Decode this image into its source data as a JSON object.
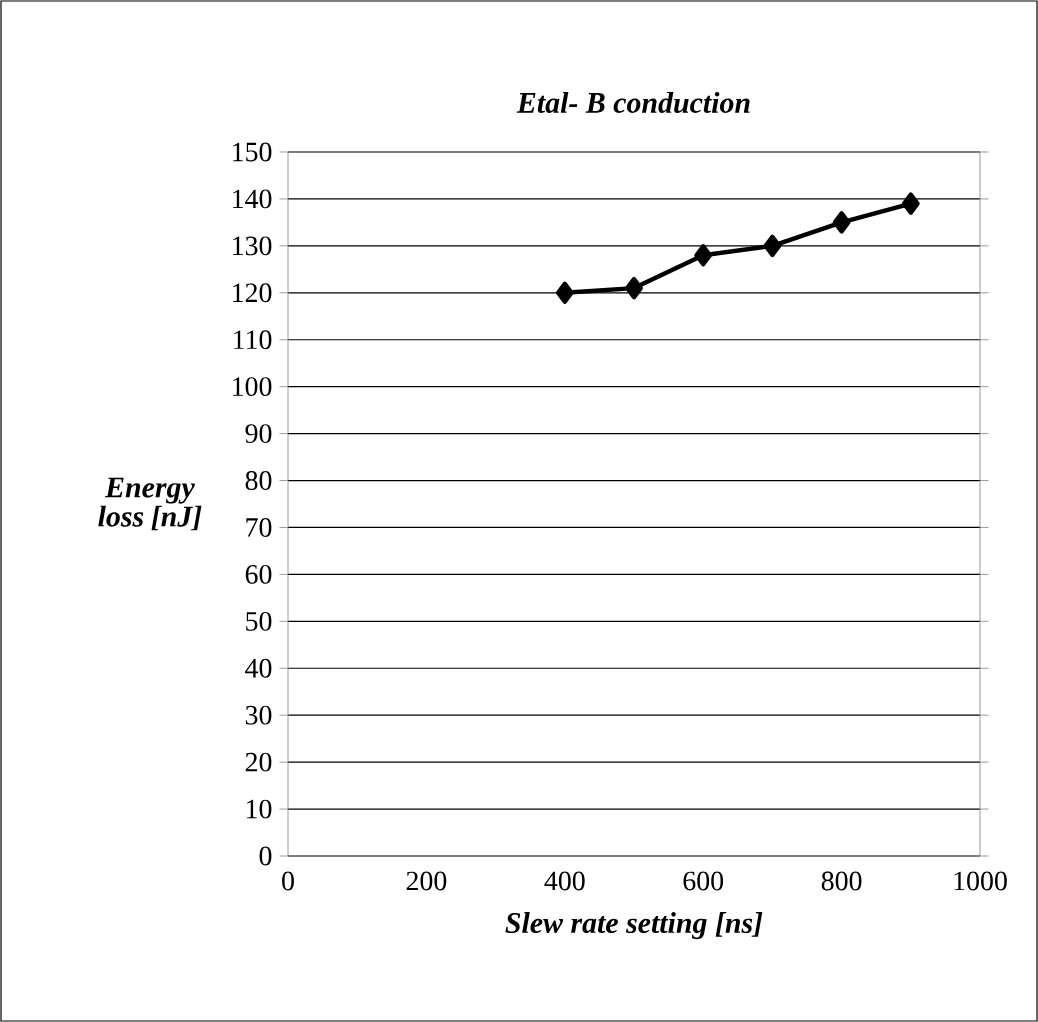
{
  "chart_data": {
    "type": "line",
    "title": "**Etal- B conduction**",
    "xlabel": "Slew rate setting [ns]",
    "ylabel": "Energy loss [nJ]",
    "x": [
      400,
      500,
      600,
      700,
      800,
      900
    ],
    "series": [
      {
        "color": "#000000",
        "values": [
          120,
          121,
          128,
          130,
          135,
          139
        ]
      }
    ],
    "xlim": [
      0,
      1000
    ],
    "xticks": [
      0,
      200,
      400,
      600,
      800,
      1000
    ],
    "ylim": [
      0,
      150
    ],
    "yticks": [
      0,
      10,
      20,
      30,
      40,
      50,
      60,
      70,
      80,
      90,
      100,
      110,
      120,
      130,
      140,
      150
    ],
    "grid": "y",
    "marker": "diamond",
    "line_style": "solid"
  }
}
